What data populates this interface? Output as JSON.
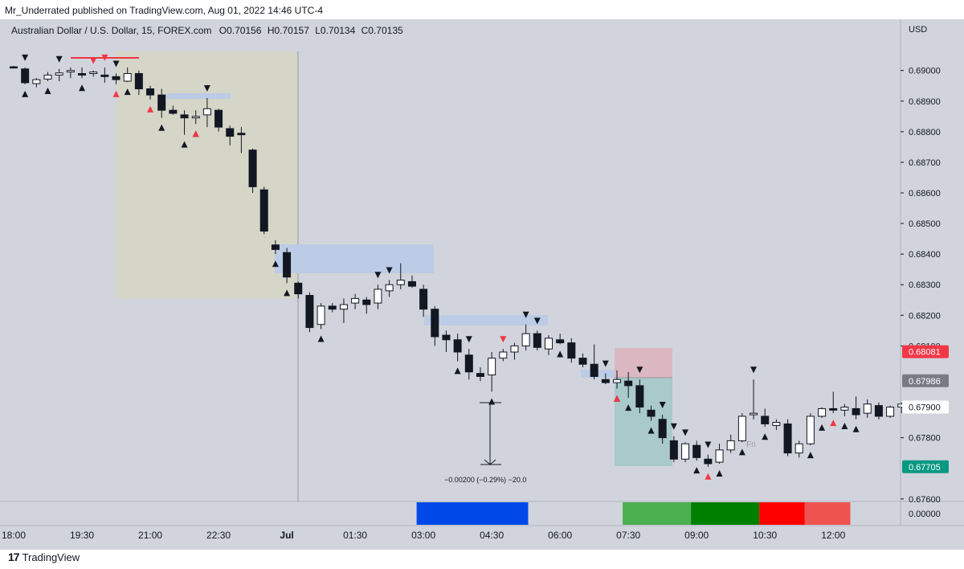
{
  "header": {
    "published": "Mr_Underrated published on TradingView.com, Aug 01, 2022 14:46 UTC-4"
  },
  "footer": {
    "brand": "TradingView",
    "logo_glyph": "17"
  },
  "chart_data": {
    "type": "candlestick",
    "title": "Australian Dollar / U.S. Dollar, 15, FOREX.com",
    "ohlc_label": {
      "o": "O0.70156",
      "h": "H0.70157",
      "l": "L0.70134",
      "c": "C0.70135"
    },
    "currency": "USD",
    "ylim": [
      0.6756,
      0.6912
    ],
    "y_ticks": [
      "0.69000",
      "0.68900",
      "0.68800",
      "0.68700",
      "0.68600",
      "0.68500",
      "0.68400",
      "0.68300",
      "0.68200",
      "0.68100",
      "0.67800",
      "0.67600"
    ],
    "price_badges": [
      {
        "label": "0.68081",
        "value": 0.68081,
        "color": "#f23645",
        "text_color": "#ffffff"
      },
      {
        "label": "0.67986",
        "value": 0.67986,
        "color": "#787b86",
        "text_color": "#ffffff"
      },
      {
        "label": "0.67900",
        "value": 0.679,
        "color": "#ffffff",
        "text_color": "#131722"
      },
      {
        "label": "0.67705",
        "value": 0.67705,
        "color": "#089981",
        "text_color": "#ffffff"
      }
    ],
    "x_ticks": [
      {
        "label": "18:00",
        "i": 0
      },
      {
        "label": "19:30",
        "i": 6
      },
      {
        "label": "21:00",
        "i": 12
      },
      {
        "label": "22:30",
        "i": 18
      },
      {
        "label": "Jul",
        "i": 24,
        "bold": true
      },
      {
        "label": "01:30",
        "i": 30
      },
      {
        "label": "03:00",
        "i": 36
      },
      {
        "label": "04:30",
        "i": 42
      },
      {
        "label": "06:00",
        "i": 48
      },
      {
        "label": "07:30",
        "i": 54
      },
      {
        "label": "09:00",
        "i": 60
      },
      {
        "label": "10:30",
        "i": 66
      },
      {
        "label": "12:00",
        "i": 72
      }
    ],
    "candles": [
      [
        0.69012,
        0.69015,
        0.69008,
        0.6901
      ],
      [
        0.69005,
        0.6901,
        0.68955,
        0.6896
      ],
      [
        0.68957,
        0.68975,
        0.68945,
        0.6897
      ],
      [
        0.68972,
        0.68995,
        0.68965,
        0.68985
      ],
      [
        0.68985,
        0.69005,
        0.68965,
        0.68992
      ],
      [
        0.68995,
        0.6901,
        0.68975,
        0.69
      ],
      [
        0.6899,
        0.6901,
        0.68975,
        0.68985
      ],
      [
        0.6899,
        0.69,
        0.6898,
        0.68995
      ],
      [
        0.68985,
        0.6901,
        0.6896,
        0.6898
      ],
      [
        0.6898,
        0.6899,
        0.68955,
        0.6897
      ],
      [
        0.68965,
        0.6901,
        0.68962,
        0.6899
      ],
      [
        0.6899,
        0.69,
        0.6892,
        0.6894
      ],
      [
        0.6894,
        0.6895,
        0.68905,
        0.6892
      ],
      [
        0.6892,
        0.6894,
        0.68845,
        0.6887
      ],
      [
        0.6887,
        0.68885,
        0.68855,
        0.6886
      ],
      [
        0.68855,
        0.6887,
        0.6879,
        0.68845
      ],
      [
        0.68845,
        0.6887,
        0.68825,
        0.6885
      ],
      [
        0.68855,
        0.6891,
        0.68815,
        0.68875
      ],
      [
        0.6887,
        0.68875,
        0.688,
        0.68815
      ],
      [
        0.6881,
        0.6882,
        0.68755,
        0.68785
      ],
      [
        0.68795,
        0.68815,
        0.6873,
        0.6879
      ],
      [
        0.6874,
        0.68745,
        0.686,
        0.6862
      ],
      [
        0.6861,
        0.6862,
        0.68465,
        0.68475
      ],
      [
        0.6843,
        0.68445,
        0.684,
        0.68415
      ],
      [
        0.68405,
        0.6842,
        0.68305,
        0.68325
      ],
      [
        0.68305,
        0.6831,
        0.68255,
        0.6827
      ],
      [
        0.68265,
        0.68275,
        0.68145,
        0.6816
      ],
      [
        0.6817,
        0.6824,
        0.68155,
        0.6823
      ],
      [
        0.6823,
        0.6824,
        0.6821,
        0.6822
      ],
      [
        0.6822,
        0.68255,
        0.68175,
        0.68235
      ],
      [
        0.6824,
        0.6827,
        0.6822,
        0.68255
      ],
      [
        0.6825,
        0.6826,
        0.68205,
        0.68235
      ],
      [
        0.6824,
        0.683,
        0.6822,
        0.68285
      ],
      [
        0.6828,
        0.68315,
        0.6826,
        0.683
      ],
      [
        0.683,
        0.6837,
        0.68285,
        0.68315
      ],
      [
        0.6831,
        0.6833,
        0.6829,
        0.68295
      ],
      [
        0.68285,
        0.683,
        0.68195,
        0.6822
      ],
      [
        0.6822,
        0.6823,
        0.681,
        0.6813
      ],
      [
        0.68135,
        0.6815,
        0.6808,
        0.6812
      ],
      [
        0.6812,
        0.6814,
        0.6805,
        0.6808
      ],
      [
        0.6807,
        0.6809,
        0.6799,
        0.68015
      ],
      [
        0.6801,
        0.6803,
        0.67985,
        0.68
      ],
      [
        0.68005,
        0.6808,
        0.6795,
        0.6806
      ],
      [
        0.6806,
        0.6809,
        0.6805,
        0.6808
      ],
      [
        0.6808,
        0.6811,
        0.68055,
        0.681
      ],
      [
        0.681,
        0.6817,
        0.68085,
        0.6814
      ],
      [
        0.6814,
        0.6815,
        0.68085,
        0.68095
      ],
      [
        0.6809,
        0.68135,
        0.6807,
        0.68125
      ],
      [
        0.6812,
        0.6814,
        0.68105,
        0.6811
      ],
      [
        0.6811,
        0.68125,
        0.68045,
        0.6806
      ],
      [
        0.6806,
        0.68075,
        0.6803,
        0.6804
      ],
      [
        0.6804,
        0.68105,
        0.6799,
        0.68
      ],
      [
        0.6799,
        0.6801,
        0.67975,
        0.6798
      ],
      [
        0.6798,
        0.6802,
        0.6796,
        0.6799
      ],
      [
        0.67985,
        0.68015,
        0.6793,
        0.6797
      ],
      [
        0.6797,
        0.6799,
        0.6788,
        0.679
      ],
      [
        0.6789,
        0.67905,
        0.67855,
        0.6787
      ],
      [
        0.6786,
        0.67875,
        0.6778,
        0.678
      ],
      [
        0.6779,
        0.67805,
        0.6772,
        0.6773
      ],
      [
        0.6773,
        0.67785,
        0.6772,
        0.6778
      ],
      [
        0.67775,
        0.6779,
        0.67725,
        0.67735
      ],
      [
        0.6773,
        0.67745,
        0.67705,
        0.67715
      ],
      [
        0.6772,
        0.6778,
        0.67715,
        0.6776
      ],
      [
        0.6776,
        0.6781,
        0.6775,
        0.6779
      ],
      [
        0.6779,
        0.6788,
        0.67785,
        0.6787
      ],
      [
        0.67875,
        0.6799,
        0.6786,
        0.6788
      ],
      [
        0.6787,
        0.67895,
        0.67835,
        0.67845
      ],
      [
        0.6784,
        0.6786,
        0.67825,
        0.6785
      ],
      [
        0.67845,
        0.6786,
        0.6774,
        0.6775
      ],
      [
        0.6775,
        0.6779,
        0.67735,
        0.6778
      ],
      [
        0.6778,
        0.6788,
        0.67775,
        0.6787
      ],
      [
        0.6787,
        0.679,
        0.67865,
        0.67895
      ],
      [
        0.67895,
        0.6795,
        0.6788,
        0.6789
      ],
      [
        0.6789,
        0.6791,
        0.6787,
        0.679
      ],
      [
        0.67895,
        0.67935,
        0.6786,
        0.67875
      ],
      [
        0.6788,
        0.67925,
        0.67865,
        0.6791
      ],
      [
        0.67905,
        0.67915,
        0.6786,
        0.6787
      ],
      [
        0.6787,
        0.67905,
        0.67865,
        0.679
      ],
      [
        0.679,
        0.67915,
        0.6788,
        0.6791
      ]
    ],
    "marker_rows_below": [
      1,
      3,
      6,
      10,
      13,
      15,
      16,
      23,
      24,
      27,
      39,
      42,
      48,
      53,
      54,
      56,
      60,
      62,
      64,
      66,
      70,
      71,
      73,
      74
    ],
    "marker_rows_above": [
      1,
      4,
      9,
      17,
      32,
      33,
      40,
      45,
      46,
      52,
      55,
      57,
      58,
      59,
      61,
      65
    ],
    "red_markers": {
      "above": [
        7,
        8,
        43
      ],
      "below": [
        9,
        12,
        16,
        53,
        61,
        72
      ]
    },
    "measure_label": "−0.00200 (−0.29%) −20.0",
    "session_label": "Fri",
    "indicator": {
      "zero_label": "0.00000",
      "segments": [
        {
          "from": 35.4,
          "to": 45.2,
          "color": "#0048e8"
        },
        {
          "from": 53.5,
          "to": 59.5,
          "color": "#4caf50"
        },
        {
          "from": 59.5,
          "to": 65.5,
          "color": "#008000"
        },
        {
          "from": 65.5,
          "to": 69.5,
          "color": "#ff0000"
        },
        {
          "from": 69.5,
          "to": 73.5,
          "color": "#ef5350"
        }
      ]
    }
  }
}
